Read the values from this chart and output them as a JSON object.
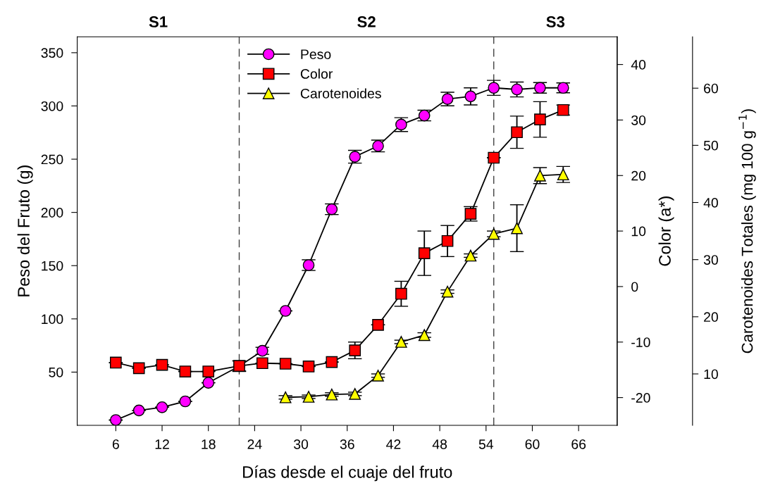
{
  "chart_data": {
    "type": "line",
    "xlabel": "Días desde el cuaje del fruto",
    "ylabel": "Peso del Fruto (g)",
    "y2label": "Color (a*)",
    "y3label": "Carotenoides Totales (mg 100 g$^{−1}$)",
    "xlim": [
      1,
      71
    ],
    "xticks": [
      6,
      12,
      18,
      24,
      30,
      36,
      42,
      48,
      54,
      60,
      66
    ],
    "ylim": [
      0,
      365
    ],
    "yticks": [
      50,
      100,
      150,
      200,
      250,
      300,
      350
    ],
    "y2lim": [
      -25,
      45
    ],
    "y2ticks": [
      -20,
      -10,
      0,
      10,
      20,
      30,
      40
    ],
    "y3lim": [
      1,
      69
    ],
    "y3ticks": [
      10,
      20,
      30,
      40,
      50,
      60
    ],
    "legend": "top",
    "grid": false,
    "line_style": "solid",
    "ref_lines": [
      {
        "axis": "x",
        "value": 22,
        "line_style": "dashed",
        "color": "#404040"
      },
      {
        "axis": "x",
        "value": 55,
        "line_style": "dashed",
        "color": "#404040"
      }
    ],
    "annotations": [
      "S1",
      "S2",
      "S3"
    ],
    "series": [
      {
        "name": "Peso",
        "color": "#ff00ff",
        "marker": "circle",
        "x": [
          6,
          9,
          12,
          15,
          18,
          22,
          25,
          28,
          31,
          34,
          37,
          40,
          43,
          46,
          49,
          52,
          55,
          58,
          61,
          64
        ],
        "values": [
          5,
          14,
          17,
          22.5,
          40,
          55.6,
          70,
          107.5,
          150.5,
          203,
          252.3,
          262.4,
          282.5,
          291,
          306.5,
          309,
          317,
          315.5,
          317,
          317
        ],
        "errors": [
          null,
          null,
          null,
          null,
          null,
          5,
          3.3,
          null,
          5,
          5,
          6,
          5.5,
          6.5,
          5,
          6.4,
          8,
          7,
          7,
          5,
          4.6
        ]
      },
      {
        "name": "Color",
        "color": "#ff0000",
        "marker": "square",
        "axis": "y2",
        "x": [
          6,
          9,
          12,
          15,
          18,
          22,
          25,
          28,
          31,
          34,
          37,
          40,
          43,
          46,
          49,
          52,
          55,
          58,
          61,
          64
        ],
        "values": [
          -13.7,
          -14.7,
          -14.1,
          -15.3,
          -15.3,
          -14.3,
          -13.8,
          -13.9,
          -14.4,
          -13.6,
          -11.5,
          -6.9,
          -1.3,
          6.0,
          8.2,
          13.1,
          23.2,
          27.8,
          30.1,
          31.8
        ],
        "errors": [
          null,
          null,
          null,
          null,
          null,
          0.9,
          null,
          null,
          null,
          null,
          1.5,
          null,
          2.25,
          4.0,
          2.8,
          1.3,
          null,
          2.9,
          3.2,
          0.9
        ]
      },
      {
        "name": "Carotenoides",
        "color": "#ffff00",
        "marker": "triangle",
        "axis": "y3",
        "x": [
          28,
          31,
          34,
          37,
          40,
          43,
          46,
          49,
          52,
          55,
          58,
          61,
          64
        ],
        "values": [
          5.9,
          6.0,
          6.4,
          6.5,
          9.7,
          15.6,
          16.8,
          24.4,
          30.7,
          34.5,
          35.5,
          44.7,
          44.9
        ],
        "errors": [
          0.3,
          0.3,
          0.3,
          0.3,
          0.3,
          0.3,
          0.4,
          0.3,
          0.3,
          0.5,
          4.1,
          1.4,
          1.4
        ]
      }
    ]
  }
}
